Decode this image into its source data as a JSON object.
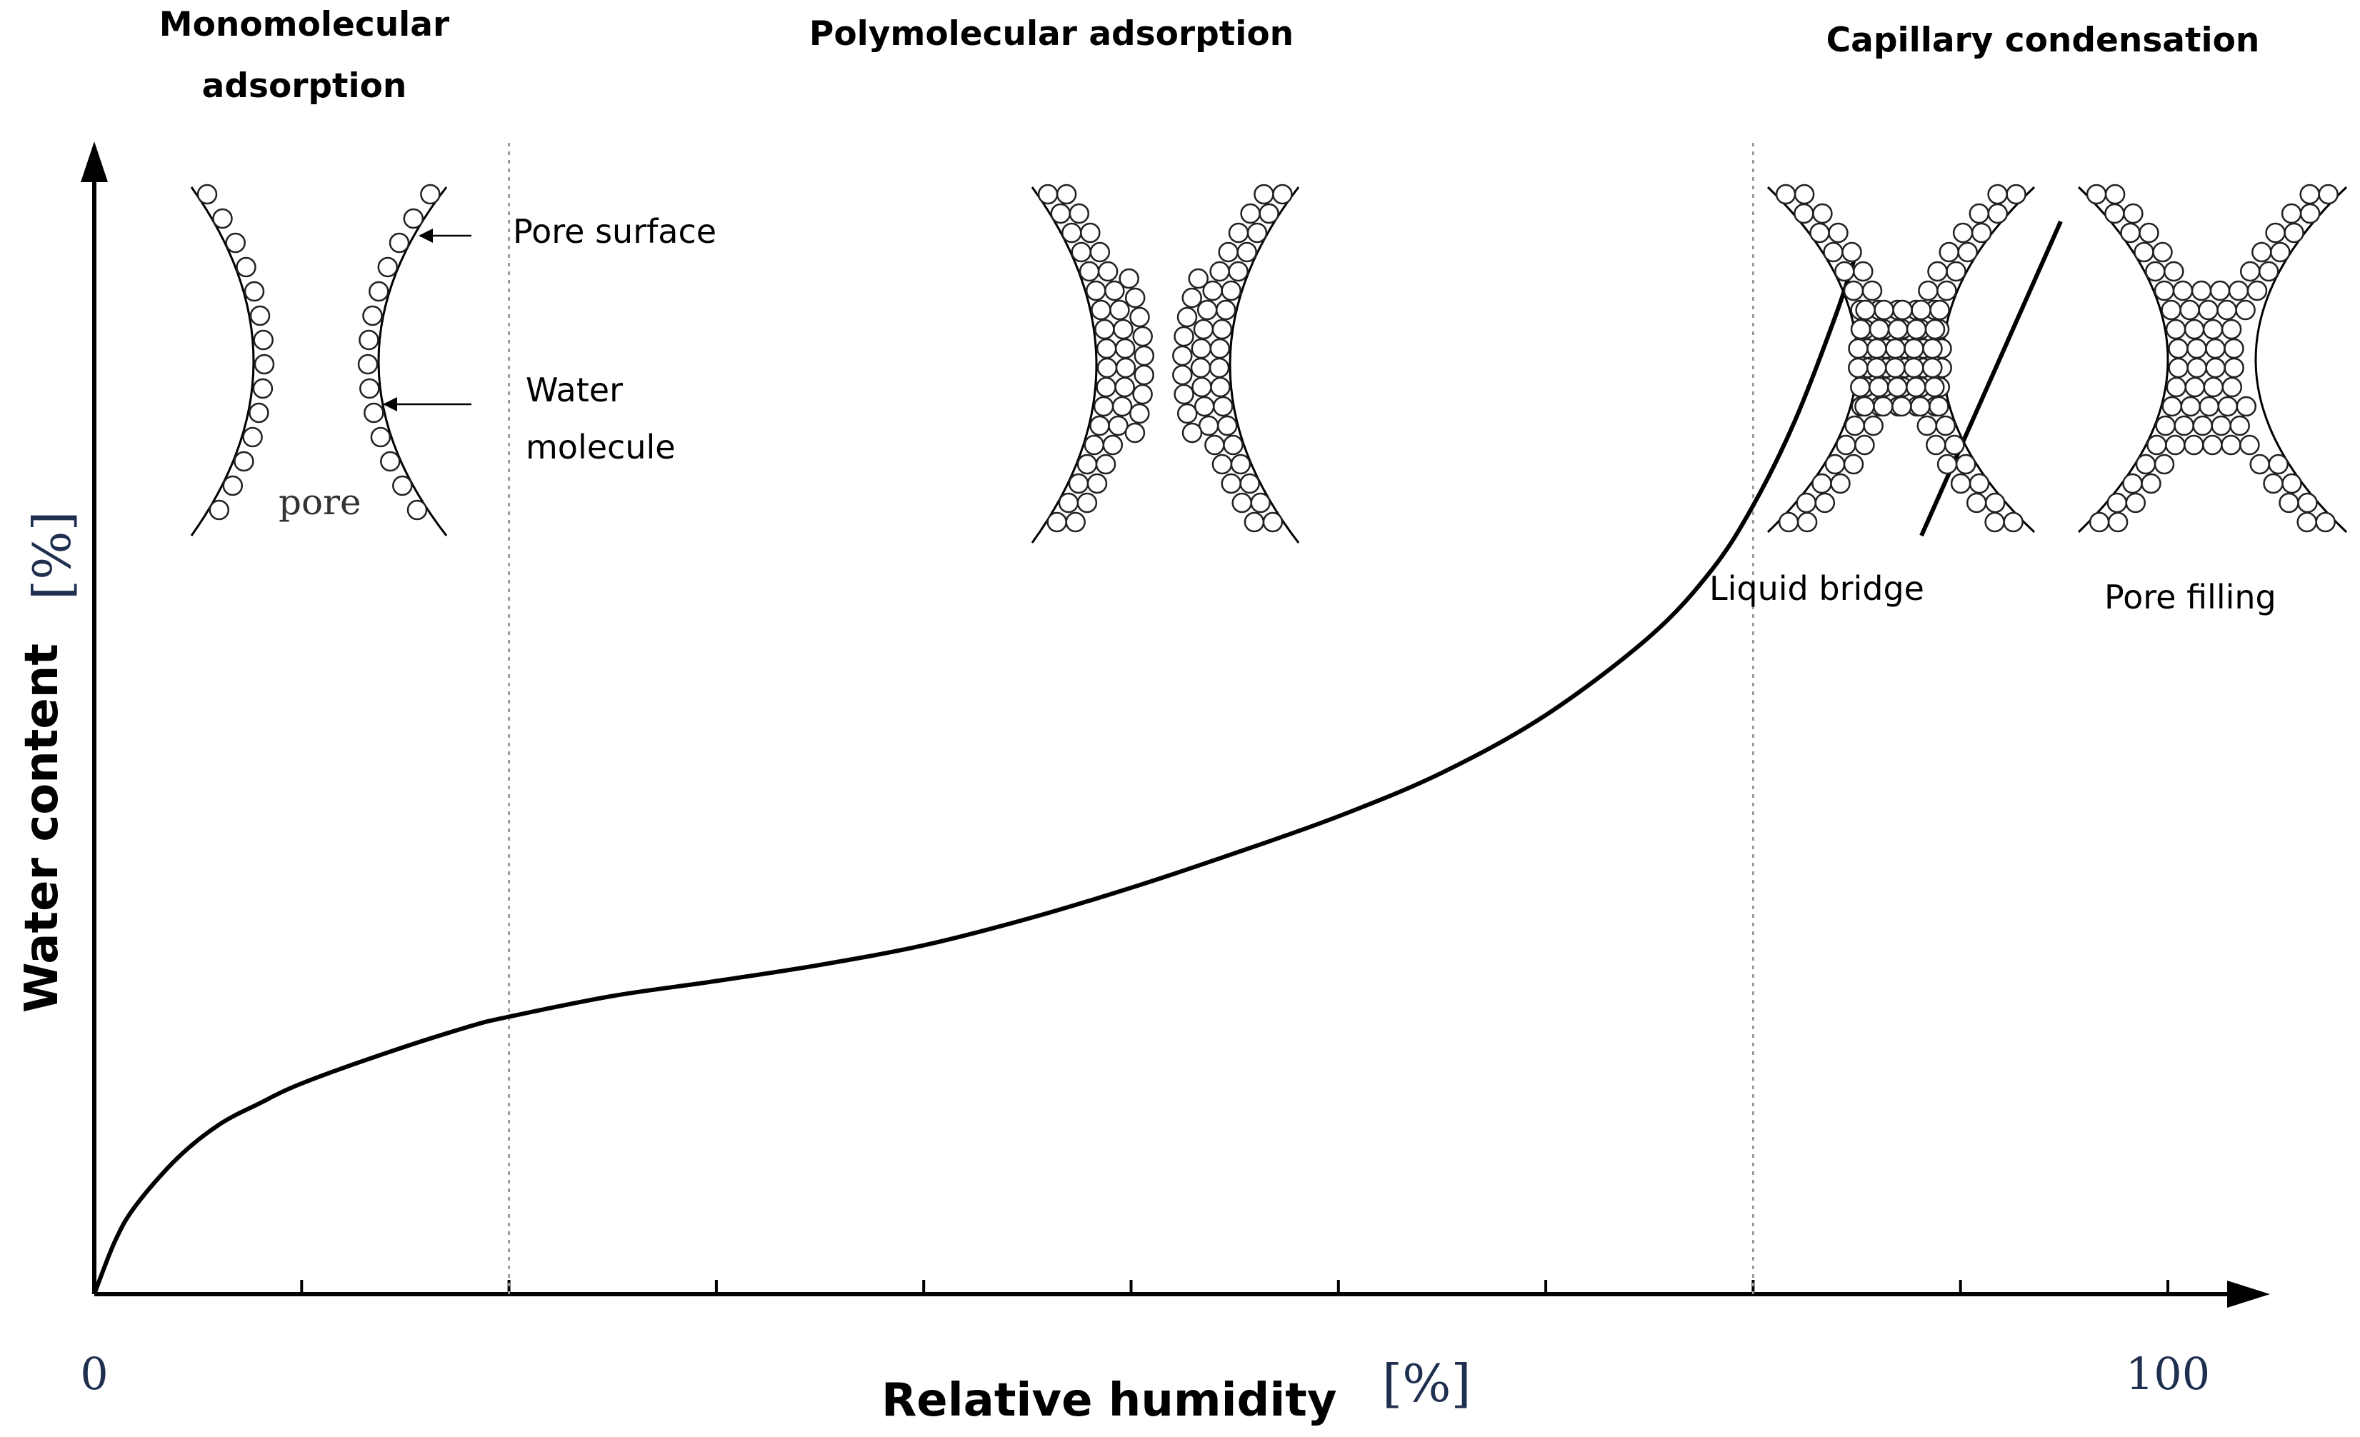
{
  "chart_data": {
    "type": "line",
    "title": "",
    "xlabel": "Relative humidity",
    "xlabel_unit": "[%]",
    "ylabel": "Water content",
    "ylabel_unit": "[%]",
    "x_tick_labels": [
      "0",
      "100"
    ],
    "xlim": [
      0,
      100
    ],
    "grid": false,
    "series": [
      {
        "x": [
          0,
          1,
          2,
          4,
          6,
          8,
          10,
          14,
          18,
          20,
          25,
          30,
          35,
          40,
          45,
          50,
          55,
          60,
          65,
          70,
          75,
          78,
          80,
          82,
          84,
          85
        ],
        "y": [
          0,
          4.6,
          7.7,
          11.8,
          14.7,
          16.6,
          18.3,
          20.9,
          23.2,
          24.1,
          25.9,
          27.2,
          28.6,
          30.3,
          32.6,
          35.3,
          38.3,
          41.5,
          45.3,
          50.3,
          57.1,
          62.9,
          68.5,
          75.8,
          85.1,
          90.6
        ]
      }
    ],
    "region_boundaries_x": [
      20,
      80
    ],
    "regions": [
      "Monomolecular adsorption",
      "Polymolecular adsorption",
      "Capillary condensation"
    ],
    "annotations": {
      "pore_surface": "Pore surface",
      "water_molecule_line1": "Water",
      "water_molecule_line2": "molecule",
      "pore": "pore",
      "liquid_bridge": "Liquid bridge",
      "pore_filling": "Pore filling"
    }
  },
  "region_title_lines": {
    "mono_line1": "Monomolecular",
    "mono_line2": "adsorption"
  },
  "colors": {
    "line": "#000000",
    "molecule_fill": "#ffffff",
    "boundary": "#888888"
  }
}
